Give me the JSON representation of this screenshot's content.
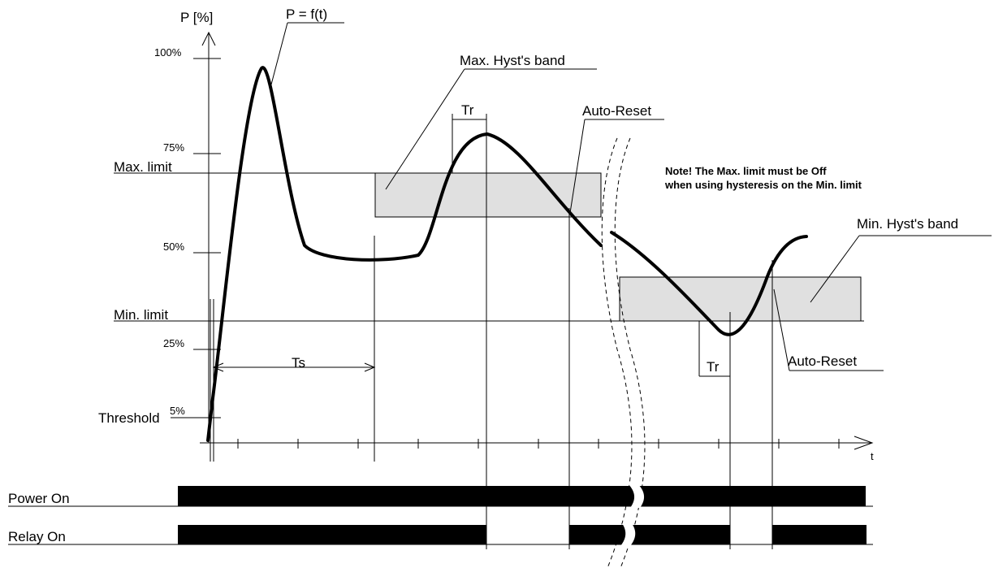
{
  "axes": {
    "y_title": "P [%]",
    "x_title": "t",
    "ticks": {
      "p100": "100%",
      "p75": "75%",
      "p50": "50%",
      "p25": "25%",
      "p5": "5%"
    }
  },
  "curve_label": "P = f(t)",
  "levels": {
    "max_limit": "Max. limit",
    "min_limit": "Min. limit",
    "threshold": "Threshold"
  },
  "bands": {
    "max": "Max. Hyst's band",
    "min": "Min. Hyst's band"
  },
  "times": {
    "ts": "Ts",
    "tr_1": "Tr",
    "tr_2": "Tr"
  },
  "events": {
    "auto_reset_1": "Auto-Reset",
    "auto_reset_2": "Auto-Reset"
  },
  "note": {
    "line1": "Note! The Max. limit must be Off",
    "line2": "when using hysteresis on the Min. limit"
  },
  "signals": {
    "power_on": "Power On",
    "relay_on": "Relay On"
  }
}
